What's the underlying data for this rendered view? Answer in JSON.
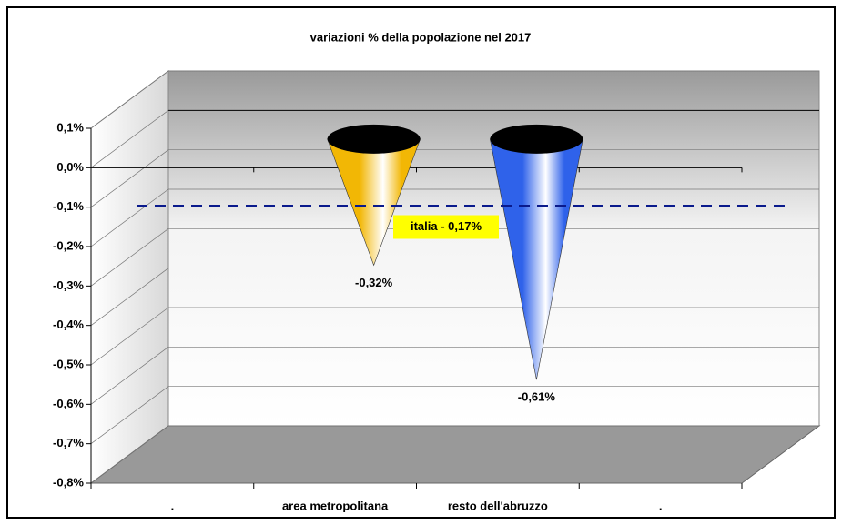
{
  "chart_data": {
    "type": "cone",
    "title": "variazioni % della popolazione nel 2017",
    "categories": [
      ".",
      "area metropolitana",
      "resto dell'abruzzo",
      "."
    ],
    "values": [
      null,
      -0.32,
      -0.61,
      null
    ],
    "value_labels": [
      null,
      "-0,32%",
      "-0,61%",
      null
    ],
    "colors": [
      null,
      "#f2b705",
      "#2f62ea",
      null
    ],
    "ylim": [
      -0.8,
      0.1
    ],
    "yticks": [
      {
        "value": 0.1,
        "label": "0,1%"
      },
      {
        "value": 0,
        "label": "0,0%"
      },
      {
        "value": -0.1,
        "label": "-0,1%"
      },
      {
        "value": -0.2,
        "label": "-0,2%"
      },
      {
        "value": -0.3,
        "label": "-0,3%"
      },
      {
        "value": -0.4,
        "label": "-0,4%"
      },
      {
        "value": -0.5,
        "label": "-0,5%"
      },
      {
        "value": -0.6,
        "label": "-0,6%"
      },
      {
        "value": -0.7,
        "label": "-0,7%"
      },
      {
        "value": -0.8,
        "label": "-0,8%"
      }
    ],
    "grid": true,
    "reference": {
      "value": -0.17,
      "label": "italia - 0,17%",
      "color": "#0a1a8c"
    }
  }
}
